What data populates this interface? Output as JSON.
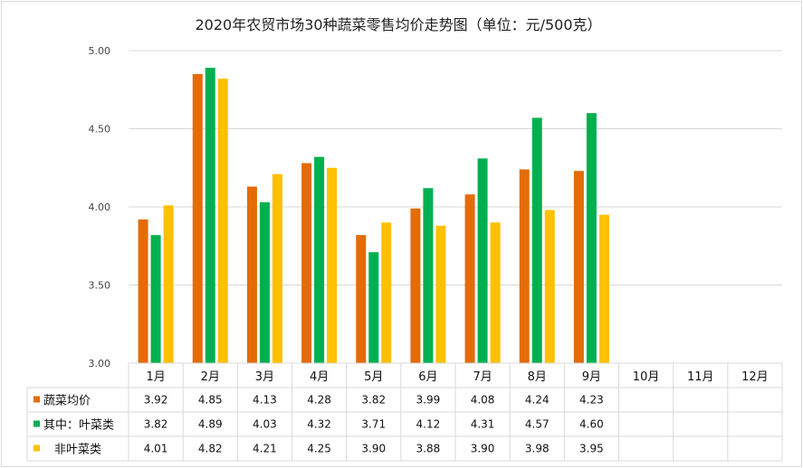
{
  "chart_data": {
    "type": "bar",
    "title": "2020年农贸市场30种蔬菜零售均价走势图（单位：元/500克）",
    "categories": [
      "1月",
      "2月",
      "3月",
      "4月",
      "5月",
      "6月",
      "7月",
      "8月",
      "9月",
      "10月",
      "11月",
      "12月"
    ],
    "ylim": [
      3.0,
      5.0
    ],
    "yticks": [
      "3.00",
      "3.50",
      "4.00",
      "4.50",
      "5.00"
    ],
    "grid": true,
    "legend": "data-table",
    "series": [
      {
        "name": "蔬菜均价",
        "color": "#E36C09",
        "values": [
          3.92,
          4.85,
          4.13,
          4.28,
          3.82,
          3.99,
          4.08,
          4.24,
          4.23,
          null,
          null,
          null
        ],
        "labels": [
          "3.92",
          "4.85",
          "4.13",
          "4.28",
          "3.82",
          "3.99",
          "4.08",
          "4.24",
          "4.23",
          "",
          "",
          ""
        ]
      },
      {
        "name": "其中：叶菜类",
        "color": "#00B050",
        "values": [
          3.82,
          4.89,
          4.03,
          4.32,
          3.71,
          4.12,
          4.31,
          4.57,
          4.6,
          null,
          null,
          null
        ],
        "labels": [
          "3.82",
          "4.89",
          "4.03",
          "4.32",
          "3.71",
          "4.12",
          "4.31",
          "4.57",
          "4.60",
          "",
          "",
          ""
        ]
      },
      {
        "name": "非叶菜类",
        "color": "#FFC000",
        "values": [
          4.01,
          4.82,
          4.21,
          4.25,
          3.9,
          3.88,
          3.9,
          3.98,
          3.95,
          null,
          null,
          null
        ],
        "labels": [
          "4.01",
          "4.82",
          "4.21",
          "4.25",
          "3.90",
          "3.88",
          "3.90",
          "3.98",
          "3.95",
          "",
          "",
          ""
        ]
      }
    ]
  }
}
